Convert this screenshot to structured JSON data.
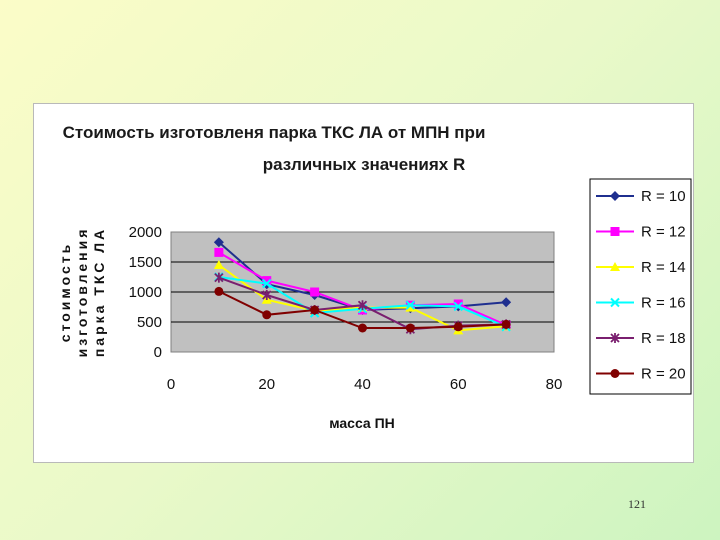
{
  "page_number": "121",
  "chart_data": {
    "type": "line",
    "title_line1": "Стоимость изготовленя парка ТКС ЛА от МПН при",
    "title_line2": "различных значениях R",
    "xlabel": "масса ПН",
    "ylabel_lines": [
      "стоимость",
      "изготовления",
      "парка ТКС ЛА"
    ],
    "xlim": [
      0,
      80
    ],
    "ylim": [
      0,
      2000
    ],
    "x_ticks": [
      "0",
      "20",
      "40",
      "60",
      "80"
    ],
    "y_ticks": [
      "0",
      "500",
      "1000",
      "1500",
      "2000"
    ],
    "grid": true,
    "legend_position": "right",
    "x": [
      10,
      20,
      30,
      40,
      50,
      60,
      70
    ],
    "series": [
      {
        "name": "R =  10",
        "color": "#1f2f8f",
        "marker": "diamond",
        "values": [
          1830,
          1130,
          950,
          700,
          730,
          760,
          830
        ]
      },
      {
        "name": "R =  12",
        "color": "#ff00ff",
        "marker": "square",
        "values": [
          1660,
          1190,
          1000,
          700,
          780,
          800,
          450
        ]
      },
      {
        "name": "R =  14",
        "color": "#ffff00",
        "marker": "triangle",
        "values": [
          1450,
          870,
          690,
          740,
          740,
          360,
          430
        ]
      },
      {
        "name": "R =  16",
        "color": "#00ffff",
        "marker": "x",
        "values": [
          1250,
          1140,
          650,
          720,
          780,
          760,
          420
        ]
      },
      {
        "name": "R =  18",
        "color": "#7a1f6f",
        "marker": "star",
        "values": [
          1240,
          950,
          700,
          780,
          380,
          440,
          460
        ]
      },
      {
        "name": "R =  20",
        "color": "#800000",
        "marker": "circle",
        "values": [
          1010,
          620,
          700,
          400,
          400,
          420,
          460
        ]
      }
    ]
  }
}
